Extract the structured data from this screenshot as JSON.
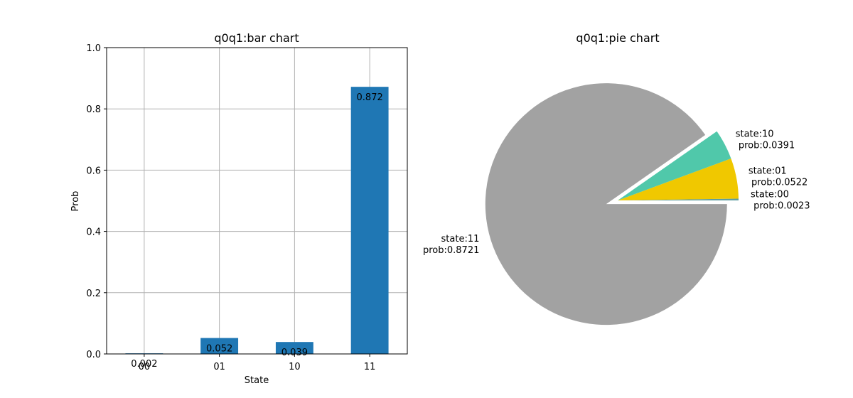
{
  "chart_data": [
    {
      "type": "bar",
      "title": "q0q1:bar chart",
      "xlabel": "State",
      "ylabel": "Prob",
      "categories": [
        "00",
        "01",
        "10",
        "11"
      ],
      "values": [
        0.002,
        0.052,
        0.039,
        0.872
      ],
      "data_labels": [
        "0.002",
        "0.052",
        "0.039",
        "0.872"
      ],
      "ylim": [
        0,
        1.0
      ],
      "yticks": [
        0.0,
        0.2,
        0.4,
        0.6,
        0.8,
        1.0
      ],
      "ytick_labels": [
        "0.0",
        "0.2",
        "0.4",
        "0.6",
        "0.8",
        "1.0"
      ],
      "grid": true,
      "colors": {
        "bar": "#1f77b4",
        "grid": "#b0b0b0"
      }
    },
    {
      "type": "pie",
      "title": "q0q1:pie chart",
      "slices": [
        {
          "state": "00",
          "value": 0.0023,
          "label_line1": "state:00",
          "label_line2": " prob:0.0023",
          "color": "#5f9ea0",
          "explode": 0.0
        },
        {
          "state": "01",
          "value": 0.0522,
          "label_line1": "state:01",
          "label_line2": " prob:0.0522",
          "color": "#f0c800",
          "explode": 0.0
        },
        {
          "state": "10",
          "value": 0.0391,
          "label_line1": "state:10",
          "label_line2": " prob:0.0391",
          "color": "#50c8aa",
          "explode": 0.0
        },
        {
          "state": "11",
          "value": 0.8721,
          "label_line1": "state:11",
          "label_line2": " prob:0.8721",
          "color": "#a2a2a2",
          "explode": 0.1
        }
      ]
    }
  ]
}
